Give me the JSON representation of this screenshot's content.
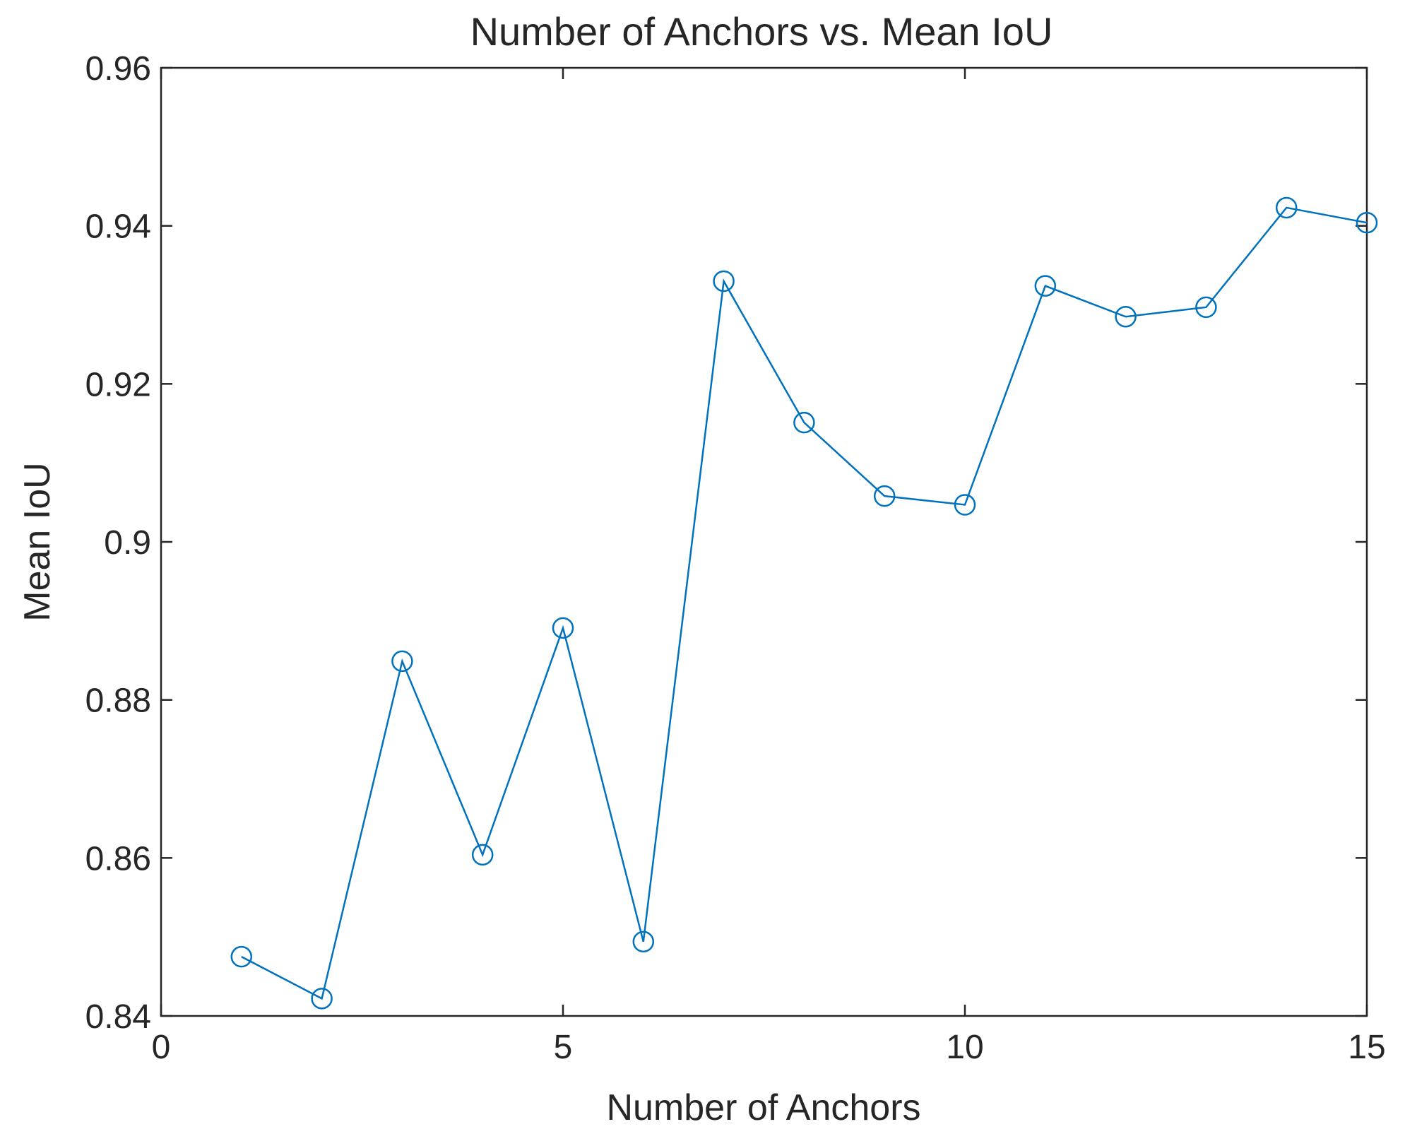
{
  "chart_data": {
    "type": "line",
    "title": "Number of Anchors vs. Mean IoU",
    "xlabel": "Number of Anchors",
    "ylabel": "Mean IoU",
    "xlim": [
      0,
      15
    ],
    "ylim": [
      0.84,
      0.96
    ],
    "xticks": [
      0,
      5,
      10,
      15
    ],
    "xtick_labels": [
      "0",
      "5",
      "10",
      "15"
    ],
    "yticks": [
      0.84,
      0.86,
      0.88,
      0.9,
      0.92,
      0.94,
      0.96
    ],
    "ytick_labels": [
      "0.84",
      "0.86",
      "0.88",
      "0.9",
      "0.92",
      "0.94",
      "0.96"
    ],
    "grid": false,
    "marker": "circle",
    "color": "#0072BD",
    "series": [
      {
        "x": [
          1,
          2,
          3,
          4,
          5,
          6,
          7,
          8,
          9,
          10,
          11,
          12,
          13,
          14,
          15
        ],
        "values": [
          0.8475,
          0.8422,
          0.8849,
          0.8604,
          0.8891,
          0.8494,
          0.933,
          0.9151,
          0.9058,
          0.9047,
          0.9324,
          0.9285,
          0.9297,
          0.9423,
          0.9404
        ]
      }
    ]
  }
}
